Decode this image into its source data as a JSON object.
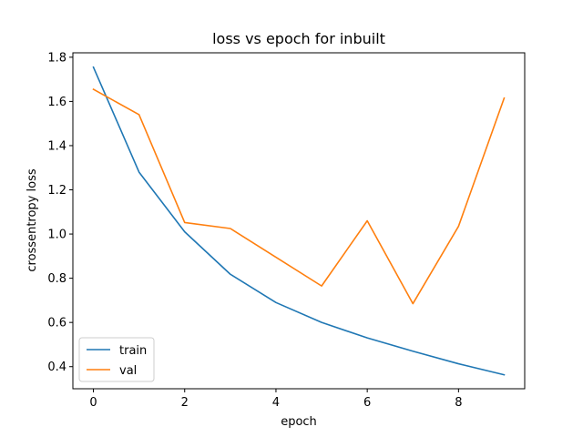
{
  "chart_data": {
    "type": "line",
    "title": "loss vs epoch for inbuilt",
    "xlabel": "epoch",
    "ylabel": "crossentropy loss",
    "x": [
      0,
      1,
      2,
      3,
      4,
      5,
      6,
      7,
      8,
      9
    ],
    "xlim": [
      -0.45,
      9.45
    ],
    "ylim": [
      0.3,
      1.82
    ],
    "xticks": [
      0,
      2,
      4,
      6,
      8
    ],
    "yticks": [
      0.4,
      0.6,
      0.8,
      1.0,
      1.2,
      1.4,
      1.6,
      1.8
    ],
    "xtick_labels": [
      "0",
      "2",
      "4",
      "6",
      "8"
    ],
    "ytick_labels": [
      "0.4",
      "0.6",
      "0.8",
      "1.0",
      "1.2",
      "1.4",
      "1.6",
      "1.8"
    ],
    "grid": false,
    "legend_position": "lower-left",
    "series": [
      {
        "name": "train",
        "color": "#1f77b4",
        "values": [
          1.755,
          1.28,
          1.01,
          0.818,
          0.69,
          0.6,
          0.53,
          0.47,
          0.413,
          0.363
        ]
      },
      {
        "name": "val",
        "color": "#ff7f0e",
        "values": [
          1.655,
          1.54,
          1.052,
          1.025,
          0.895,
          0.765,
          1.06,
          0.685,
          1.035,
          1.615
        ]
      }
    ]
  }
}
